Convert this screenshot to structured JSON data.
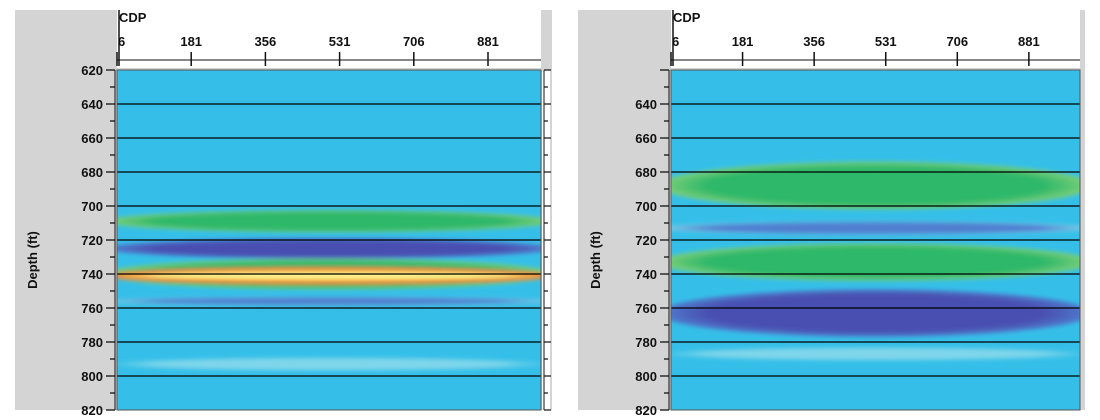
{
  "colors": {
    "background": "#35bfe8",
    "light_band": "#7fd6ea",
    "green": "#2fb86a",
    "light_green": "#7fd07a",
    "purple": "#4a4fb0",
    "blue": "#4f7fd0",
    "red": "#e8332a",
    "orange": "#f39a2a",
    "yellow": "#fbf58a",
    "panel": "#d4d4d4",
    "gridline": "#000000"
  },
  "chart_data": [
    {
      "type": "heatmap",
      "xlabel": "CDP",
      "ylabel": "Depth (ft)",
      "x_ticks": [
        "6",
        "181",
        "356",
        "531",
        "706",
        "881"
      ],
      "x_tick_values": [
        6,
        181,
        356,
        531,
        706,
        881
      ],
      "xlim": [
        6,
        1006
      ],
      "y_ticks": [
        "620",
        "640",
        "660",
        "680",
        "700",
        "720",
        "740",
        "760",
        "780",
        "800",
        "820"
      ],
      "ylim": [
        620,
        820
      ],
      "gridlines_depth": [
        640,
        660,
        680,
        700,
        720,
        740,
        760,
        780,
        800
      ],
      "bands": [
        {
          "depth": 709,
          "thickness": 13,
          "color": "green",
          "edge_color": "light_green"
        },
        {
          "depth": 725,
          "thickness": 12,
          "color": "purple",
          "edge_color": "blue"
        },
        {
          "depth": 740,
          "thickness": 18,
          "color": "green",
          "edge_color": "light_green"
        },
        {
          "depth": 741,
          "thickness": 10,
          "color": "orange",
          "edge_color": "red"
        },
        {
          "depth": 741,
          "thickness": 5,
          "color": "yellow",
          "edge_color": "orange"
        },
        {
          "depth": 756,
          "thickness": 5,
          "color": "blue",
          "edge_color": "light_band"
        },
        {
          "depth": 793,
          "thickness": 8,
          "color": "light_band",
          "edge_color": "background"
        }
      ]
    },
    {
      "type": "heatmap",
      "xlabel": "CDP",
      "ylabel": "Depth (ft)",
      "x_ticks": [
        "6",
        "181",
        "356",
        "531",
        "706",
        "881"
      ],
      "x_tick_values": [
        6,
        181,
        356,
        531,
        706,
        881
      ],
      "xlim": [
        6,
        1006
      ],
      "y_ticks": [
        "640",
        "660",
        "680",
        "700",
        "720",
        "740",
        "760",
        "780",
        "800",
        "820"
      ],
      "ylim": [
        620,
        820
      ],
      "gridlines_depth": [
        640,
        660,
        680,
        700,
        720,
        740,
        760,
        780,
        800
      ],
      "bands": [
        {
          "depth": 688,
          "thickness": 28,
          "color": "green",
          "edge_color": "light_green"
        },
        {
          "depth": 713,
          "thickness": 8,
          "color": "blue",
          "edge_color": "light_band"
        },
        {
          "depth": 733,
          "thickness": 22,
          "color": "green",
          "edge_color": "light_green"
        },
        {
          "depth": 763,
          "thickness": 28,
          "color": "purple",
          "edge_color": "blue"
        },
        {
          "depth": 787,
          "thickness": 8,
          "color": "light_band",
          "edge_color": "background"
        }
      ]
    }
  ]
}
